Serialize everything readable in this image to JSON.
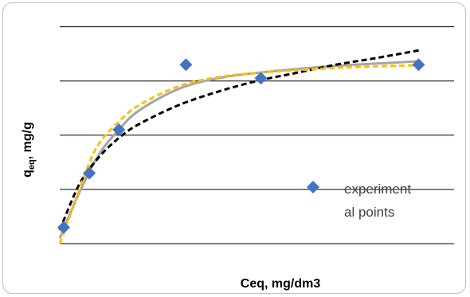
{
  "chart_data": {
    "type": "scatter",
    "xlabel": "Ceq, mg/dm3",
    "ylabel_main": "q",
    "ylabel_sub": "eq",
    "ylabel_rest": ", mg/g",
    "xlim": [
      0,
      10
    ],
    "ylim": [
      0,
      4.2
    ],
    "y_gridlines": [
      0,
      1,
      2,
      3,
      4
    ],
    "grid": true,
    "series": [
      {
        "name": "experiment al points",
        "kind": "points",
        "marker": "diamond",
        "color": "#4472c4",
        "x": [
          0.1,
          0.75,
          1.5,
          3.2,
          5.1,
          9.1
        ],
        "y": [
          0.3,
          1.3,
          2.1,
          3.3,
          3.05,
          3.3
        ]
      },
      {
        "kind": "curve",
        "style": "dashed",
        "color": "#000000",
        "x": [
          0,
          0.5,
          1,
          1.5,
          2,
          3,
          4,
          5,
          6,
          7,
          8,
          9,
          9.1
        ],
        "y": [
          0.25,
          1.1,
          1.6,
          1.95,
          2.2,
          2.55,
          2.8,
          3.0,
          3.15,
          3.3,
          3.42,
          3.55,
          3.56
        ]
      },
      {
        "kind": "curve",
        "style": "solid",
        "color": "#a5a5a5",
        "x": [
          0,
          0.5,
          1,
          1.5,
          2,
          3,
          4,
          5,
          6,
          7,
          8,
          9,
          9.1
        ],
        "y": [
          0.1,
          0.95,
          1.65,
          2.1,
          2.45,
          2.85,
          3.05,
          3.15,
          3.22,
          3.28,
          3.32,
          3.36,
          3.37
        ]
      },
      {
        "kind": "curve",
        "style": "dashed",
        "color": "#ffc000",
        "x": [
          0,
          0.3,
          0.7,
          1,
          1.5,
          2,
          3,
          4,
          5,
          6,
          7,
          8,
          9,
          9.1
        ],
        "y": [
          0,
          0.6,
          1.4,
          1.85,
          2.25,
          2.55,
          2.9,
          3.07,
          3.15,
          3.2,
          3.24,
          3.27,
          3.29,
          3.3
        ]
      }
    ]
  }
}
